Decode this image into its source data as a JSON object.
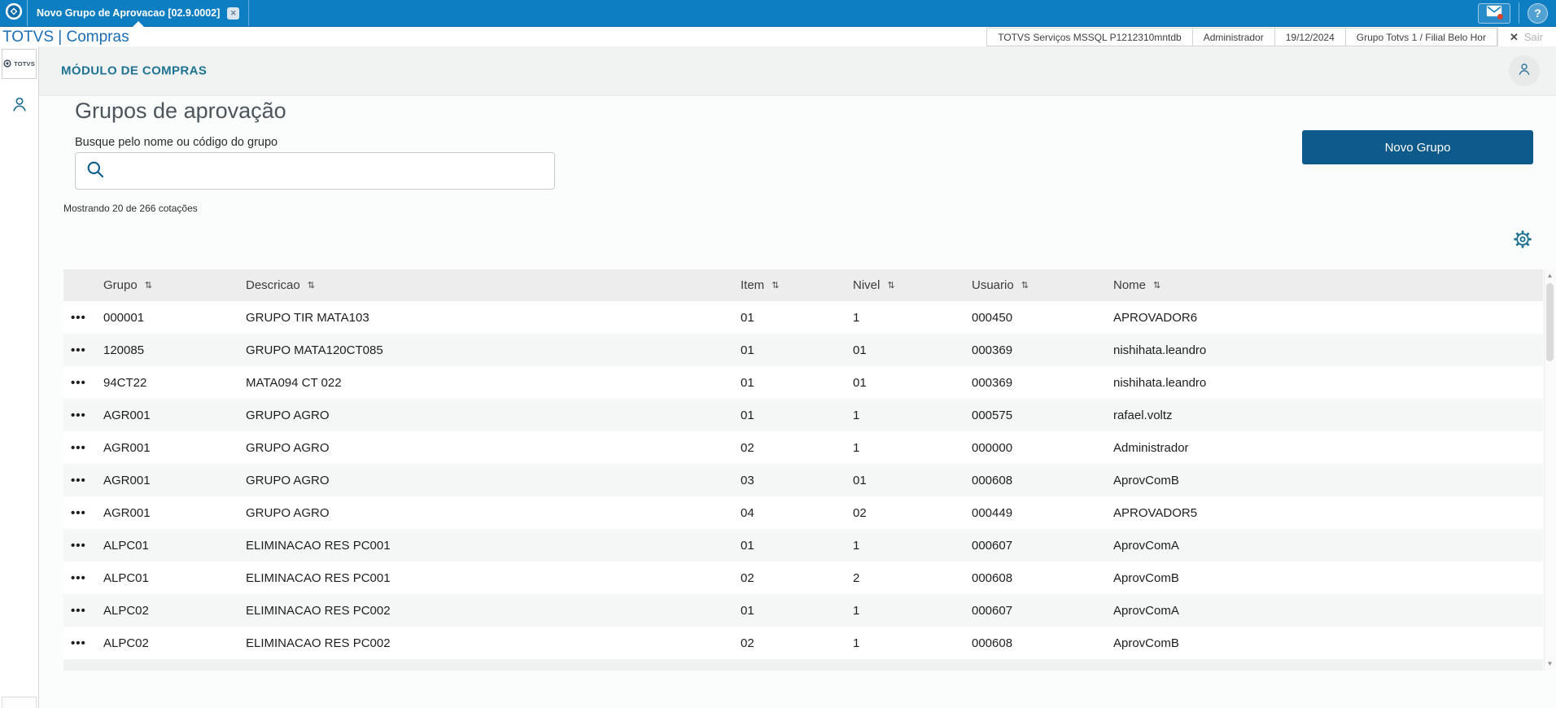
{
  "colors": {
    "topbar_blue": "#0e7ec2",
    "button_blue": "#0e5a8a",
    "module_title_blue": "#1e7392",
    "notification_red": "#d8432f"
  },
  "icons": {
    "row_menu": "•••",
    "sort": "⇅",
    "close_tab": "✕",
    "exit_x": "✕",
    "help": "?"
  },
  "top_bar": {
    "tab_title": "Novo Grupo de Aprovacao [02.9.0002]"
  },
  "app_bar": {
    "brand": "TOTVS | Compras",
    "status_items": [
      "TOTVS Serviços MSSQL P1212310mntdb",
      "Administrador",
      "19/12/2024",
      "Grupo Totvs 1 / Filial Belo Hor"
    ],
    "exit_label": "Sair"
  },
  "sidebar": {
    "logo_label": "TOTVS"
  },
  "module_header": {
    "title": "MÓDULO DE COMPRAS"
  },
  "content": {
    "title": "Grupos de aprovação",
    "search_label": "Busque pelo nome ou código do grupo",
    "search_value": "",
    "results_info": "Mostrando 20 de 266 cotações",
    "new_group_button": "Novo Grupo"
  },
  "table": {
    "columns": [
      "Grupo",
      "Descricao",
      "Item",
      "Nivel",
      "Usuario",
      "Nome"
    ],
    "rows": [
      {
        "grupo": "000001",
        "descricao": "GRUPO TIR MATA103",
        "item": "01",
        "nivel": "1",
        "usuario": "000450",
        "nome": "APROVADOR6"
      },
      {
        "grupo": "120085",
        "descricao": "GRUPO MATA120CT085",
        "item": "01",
        "nivel": "01",
        "usuario": "000369",
        "nome": "nishihata.leandro"
      },
      {
        "grupo": "94CT22",
        "descricao": "MATA094 CT 022",
        "item": "01",
        "nivel": "01",
        "usuario": "000369",
        "nome": "nishihata.leandro"
      },
      {
        "grupo": "AGR001",
        "descricao": "GRUPO AGRO",
        "item": "01",
        "nivel": "1",
        "usuario": "000575",
        "nome": "rafael.voltz"
      },
      {
        "grupo": "AGR001",
        "descricao": "GRUPO AGRO",
        "item": "02",
        "nivel": "1",
        "usuario": "000000",
        "nome": "Administrador"
      },
      {
        "grupo": "AGR001",
        "descricao": "GRUPO AGRO",
        "item": "03",
        "nivel": "01",
        "usuario": "000608",
        "nome": "AprovComB"
      },
      {
        "grupo": "AGR001",
        "descricao": "GRUPO AGRO",
        "item": "04",
        "nivel": "02",
        "usuario": "000449",
        "nome": "APROVADOR5"
      },
      {
        "grupo": "ALPC01",
        "descricao": "ELIMINACAO RES PC001",
        "item": "01",
        "nivel": "1",
        "usuario": "000607",
        "nome": "AprovComA"
      },
      {
        "grupo": "ALPC01",
        "descricao": "ELIMINACAO RES PC001",
        "item": "02",
        "nivel": "2",
        "usuario": "000608",
        "nome": "AprovComB"
      },
      {
        "grupo": "ALPC02",
        "descricao": "ELIMINACAO RES PC002",
        "item": "01",
        "nivel": "1",
        "usuario": "000607",
        "nome": "AprovComA"
      },
      {
        "grupo": "ALPC02",
        "descricao": "ELIMINACAO RES PC002",
        "item": "02",
        "nivel": "1",
        "usuario": "000608",
        "nome": "AprovComB"
      }
    ]
  }
}
